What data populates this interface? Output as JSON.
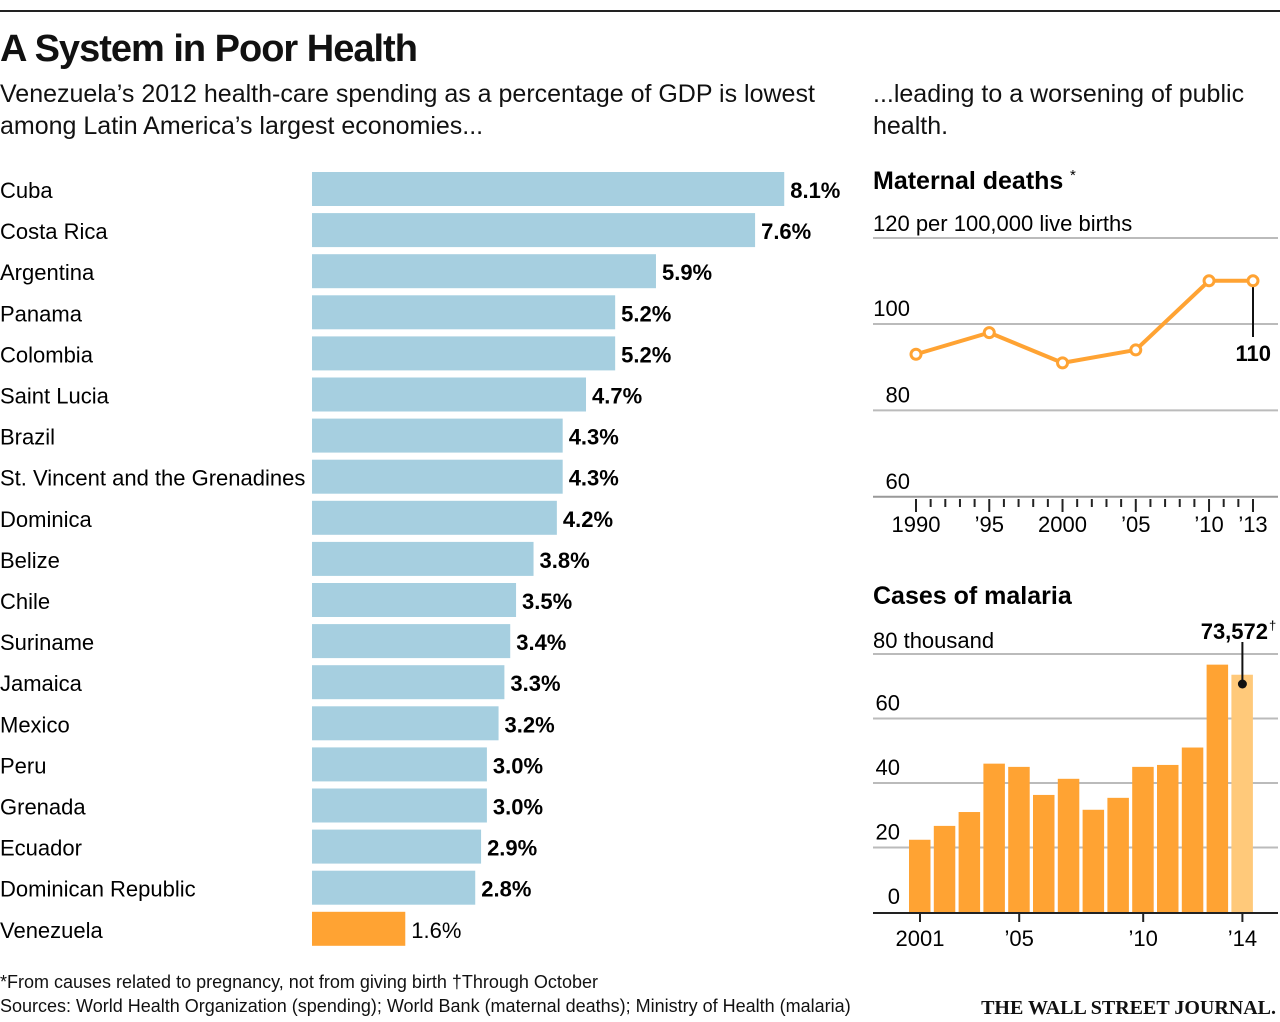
{
  "title": "A System in Poor Health",
  "subtitle_left": "Venezuela’s 2012 health-care spending as a percentage of GDP is lowest among Latin America’s largest economies...",
  "subtitle_right": "...leading to a worsening of public health.",
  "footnote": "*From causes related to pregnancy, not from giving birth  †Through October",
  "sources": "Sources: World Health Organization (spending); World Bank (maternal deaths); Ministry of Health (malaria)",
  "publisher": "THE WALL STREET JOURNAL.",
  "colors": {
    "bar_blue": "#a6cfe0",
    "highlight": "#ffa333",
    "bar_orange": "#ffa333",
    "bar_light_orange": "#ffc97a"
  },
  "chart_data": [
    {
      "type": "bar",
      "orientation": "horizontal",
      "title": "",
      "categories": [
        "Cuba",
        "Costa Rica",
        "Argentina",
        "Panama",
        "Colombia",
        "Saint Lucia",
        "Brazil",
        "St. Vincent and the Grenadines",
        "Dominica",
        "Belize",
        "Chile",
        "Suriname",
        "Jamaica",
        "Mexico",
        "Peru",
        "Grenada",
        "Ecuador",
        "Dominican Republic",
        "Venezuela"
      ],
      "values": [
        8.1,
        7.6,
        5.9,
        5.2,
        5.2,
        4.7,
        4.3,
        4.3,
        4.2,
        3.8,
        3.5,
        3.4,
        3.3,
        3.2,
        3.0,
        3.0,
        2.9,
        2.8,
        1.6
      ],
      "labels": [
        "8.1%",
        "7.6%",
        "5.9%",
        "5.2%",
        "5.2%",
        "4.7%",
        "4.3%",
        "4.3%",
        "4.2%",
        "3.8%",
        "3.5%",
        "3.4%",
        "3.3%",
        "3.2%",
        "3.0%",
        "3.0%",
        "2.9%",
        "2.8%",
        "1.6%"
      ],
      "highlight": "Venezuela"
    },
    {
      "type": "line",
      "title": "Maternal deaths",
      "title_mark": "*",
      "unit_label": "120 per 100,000 live births",
      "x": [
        1990,
        1995,
        2000,
        2005,
        2010,
        2013
      ],
      "y": [
        93,
        98,
        91,
        94,
        110,
        110
      ],
      "ylim": [
        60,
        120
      ],
      "yticks": [
        {
          "v": 100,
          "label": "100"
        },
        {
          "v": 80,
          "label": "80"
        },
        {
          "v": 60,
          "label": "60"
        }
      ],
      "xticks": [
        {
          "v": 1990,
          "label": "1990"
        },
        {
          "v": 1995,
          "label": "’95"
        },
        {
          "v": 2000,
          "label": "2000"
        },
        {
          "v": 2005,
          "label": "’05"
        },
        {
          "v": 2010,
          "label": "’10"
        },
        {
          "v": 2013,
          "label": "’13"
        }
      ],
      "annotation": "110",
      "grid": true
    },
    {
      "type": "bar",
      "title": "Cases of malaria",
      "unit_label": "80 thousand",
      "x": [
        2001,
        2002,
        2003,
        2004,
        2005,
        2006,
        2007,
        2008,
        2009,
        2010,
        2011,
        2012,
        2013,
        2014
      ],
      "values": [
        22.4,
        26.7,
        31,
        46,
        45,
        36.3,
        41.3,
        31.7,
        35.4,
        45,
        45.6,
        51,
        76.7,
        73.572
      ],
      "ylim": [
        0,
        80
      ],
      "yticks": [
        {
          "v": 60,
          "label": "60"
        },
        {
          "v": 40,
          "label": "40"
        },
        {
          "v": 20,
          "label": "20"
        },
        {
          "v": 0,
          "label": "0"
        }
      ],
      "xticks": [
        {
          "v": 2001,
          "label": "2001"
        },
        {
          "v": 2005,
          "label": "’05"
        },
        {
          "v": 2010,
          "label": "’10"
        },
        {
          "v": 2014,
          "label": "’14"
        }
      ],
      "annotation": "73,572",
      "annotation_mark": "†",
      "partial_year": 2014,
      "grid": true
    }
  ]
}
